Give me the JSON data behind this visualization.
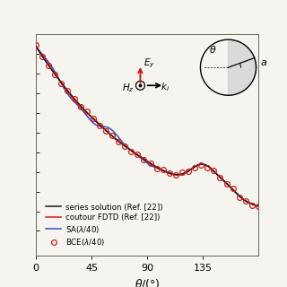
{
  "title": "",
  "xlabel": "$\\theta$/(°)",
  "ylabel": "",
  "xlim": [
    0,
    180
  ],
  "legend_entries": [
    "series solution (Ref. [22])",
    "coutour FDTD (Ref. [22])",
    "SA($\\lambda$/40)",
    "BCE($\\lambda$/40)"
  ],
  "line_colors_dark": "#1a1a1a",
  "line_colors_red": "#d42020",
  "line_colors_blue": "#3050cc",
  "xticks": [
    0,
    45,
    90,
    135
  ],
  "background_color": "#f5f4ee",
  "ylim": [
    0.15,
    2.4
  ],
  "figsize": [
    3.2,
    3.2
  ],
  "dpi": 100
}
